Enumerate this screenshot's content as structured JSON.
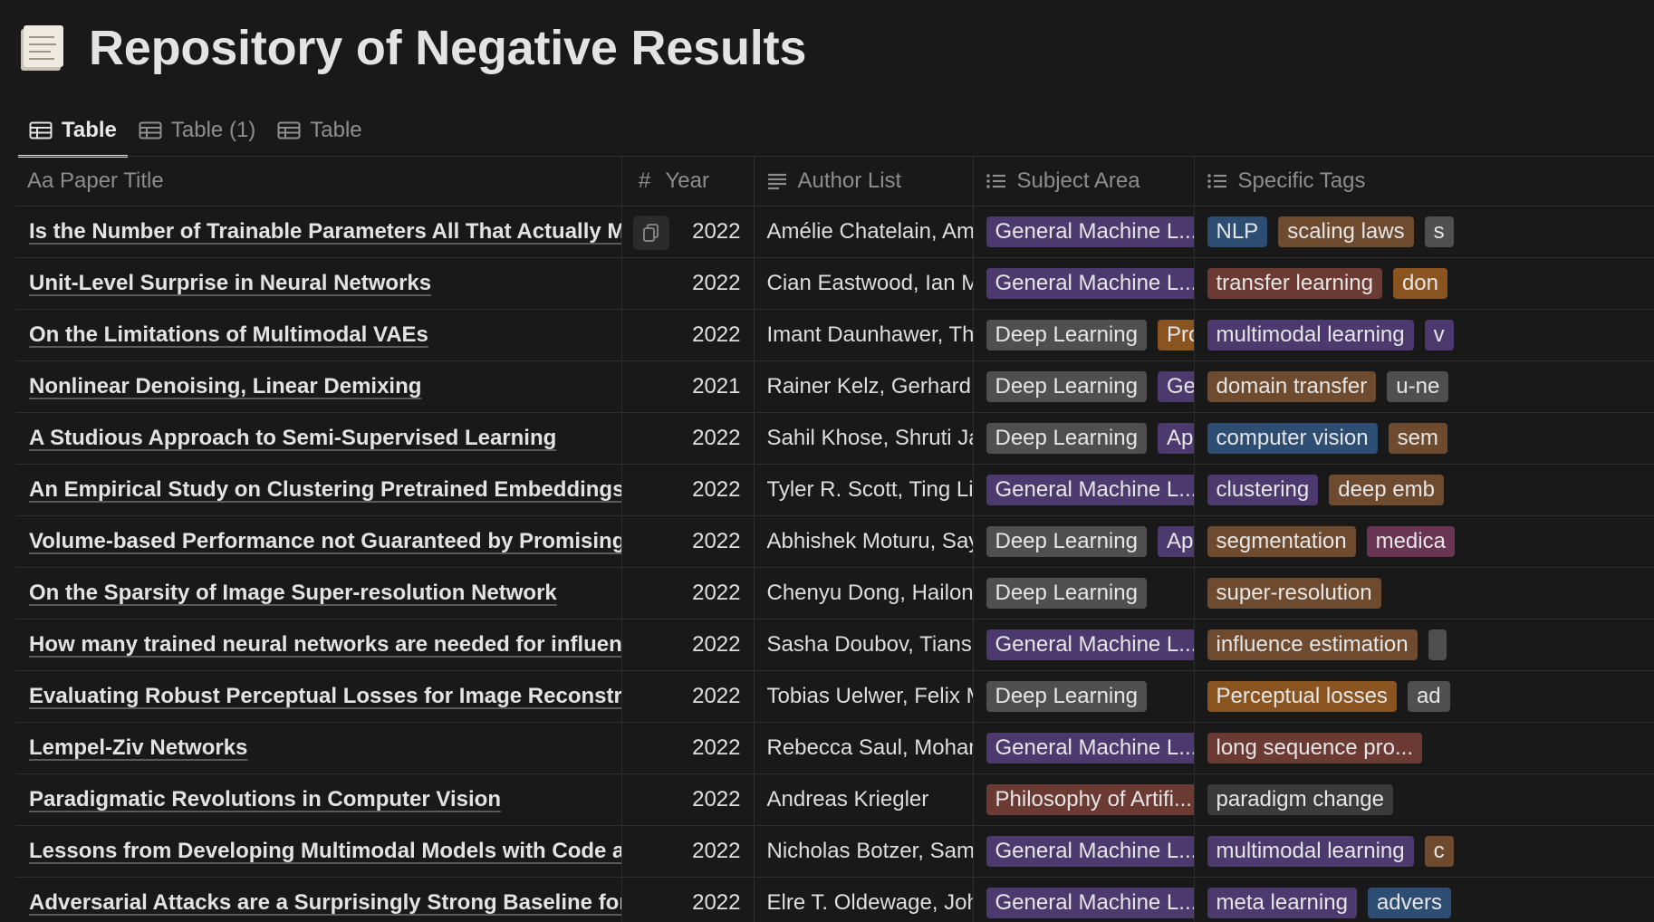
{
  "page": {
    "title": "Repository of Negative Results",
    "icon": "scroll-page-icon"
  },
  "tabs": [
    {
      "label": "Table",
      "active": true
    },
    {
      "label": "Table (1)",
      "active": false
    },
    {
      "label": "Table",
      "active": false
    }
  ],
  "columns": {
    "title": {
      "icon": "Aa",
      "label": "Paper Title"
    },
    "year": {
      "icon": "#",
      "label": "Year"
    },
    "authors": {
      "icon": "text-lines-icon",
      "label": "Author List"
    },
    "subject": {
      "icon": "list-icon",
      "label": "Subject Area"
    },
    "tags": {
      "icon": "list-icon",
      "label": "Specific Tags"
    }
  },
  "colors": {
    "purple": "#4c3a6e",
    "gray": "#4f4f4f",
    "brown": "#6e4b2f",
    "orange": "#8a5420",
    "blue": "#2d4d72",
    "red": "#6b3a33",
    "pink": "#6a3552",
    "darkgray": "#3a3a3a"
  },
  "rows": [
    {
      "title": "Is the Number of Trainable Parameters All That Actually Matters",
      "year": "2022",
      "authors": "Amélie Chatelain, Amine",
      "subjects": [
        {
          "text": "General Machine L...",
          "color": "purple"
        }
      ],
      "tags": [
        {
          "text": "NLP",
          "color": "blue"
        },
        {
          "text": "scaling laws",
          "color": "brown"
        },
        {
          "text": "s",
          "color": "gray"
        }
      ]
    },
    {
      "title": "Unit-Level Surprise in Neural Networks",
      "year": "2022",
      "authors": "Cian Eastwood, Ian Mas",
      "subjects": [
        {
          "text": "General Machine L...",
          "color": "purple"
        }
      ],
      "tags": [
        {
          "text": "transfer learning",
          "color": "red"
        },
        {
          "text": "don",
          "color": "orange"
        }
      ]
    },
    {
      "title": "On the Limitations of Multimodal VAEs",
      "year": "2022",
      "authors": "Imant Daunhawer, Thom",
      "subjects": [
        {
          "text": "Deep Learning",
          "color": "gray"
        },
        {
          "text": "Proba",
          "color": "orange"
        }
      ],
      "tags": [
        {
          "text": "multimodal learning",
          "color": "purple"
        },
        {
          "text": "v",
          "color": "purple"
        }
      ]
    },
    {
      "title": "Nonlinear Denoising, Linear Demixing",
      "year": "2021",
      "authors": "Rainer Kelz, Gerhard Wi",
      "subjects": [
        {
          "text": "Deep Learning",
          "color": "gray"
        },
        {
          "text": "Gener",
          "color": "purple"
        }
      ],
      "tags": [
        {
          "text": "domain transfer",
          "color": "brown"
        },
        {
          "text": "u-ne",
          "color": "gray"
        }
      ]
    },
    {
      "title": "A Studious Approach to Semi-Supervised Learning",
      "year": "2022",
      "authors": "Sahil Khose, Shruti Jain",
      "subjects": [
        {
          "text": "Deep Learning",
          "color": "gray"
        },
        {
          "text": "Applic",
          "color": "purple"
        }
      ],
      "tags": [
        {
          "text": "computer vision",
          "color": "blue"
        },
        {
          "text": "sem",
          "color": "brown"
        }
      ]
    },
    {
      "title": "An Empirical Study on Clustering Pretrained Embeddings: Is Deep S",
      "year": "2022",
      "authors": "Tyler R. Scott, Ting Liu,",
      "subjects": [
        {
          "text": "General Machine L...",
          "color": "purple"
        }
      ],
      "tags": [
        {
          "text": "clustering",
          "color": "purple"
        },
        {
          "text": "deep emb",
          "color": "brown"
        }
      ]
    },
    {
      "title": "Volume-based Performance not Guaranteed by Promising Patch-ba",
      "year": "2022",
      "authors": "Abhishek Moturu, Sayal",
      "subjects": [
        {
          "text": "Deep Learning",
          "color": "gray"
        },
        {
          "text": "Applic",
          "color": "purple"
        }
      ],
      "tags": [
        {
          "text": "segmentation",
          "color": "brown"
        },
        {
          "text": "medica",
          "color": "pink"
        }
      ]
    },
    {
      "title": "On the Sparsity of Image Super-resolution Network",
      "year": "2022",
      "authors": "Chenyu Dong, Hailong M",
      "subjects": [
        {
          "text": "Deep Learning",
          "color": "gray"
        }
      ],
      "tags": [
        {
          "text": "super-resolution",
          "color": "brown"
        }
      ]
    },
    {
      "title": "How many trained neural networks are needed for influence estima",
      "year": "2022",
      "authors": "Sasha Doubov, Tianshi C",
      "subjects": [
        {
          "text": "General Machine L...",
          "color": "purple"
        }
      ],
      "tags": [
        {
          "text": "influence estimation",
          "color": "brown"
        },
        {
          "text": " ",
          "color": "gray"
        }
      ]
    },
    {
      "title": "Evaluating Robust Perceptual Losses for Image Reconstruction",
      "year": "2022",
      "authors": "Tobias Uelwer, Felix Mic",
      "subjects": [
        {
          "text": "Deep Learning",
          "color": "gray"
        }
      ],
      "tags": [
        {
          "text": "Perceptual losses",
          "color": "orange"
        },
        {
          "text": "ad",
          "color": "gray"
        }
      ]
    },
    {
      "title": "Lempel-Ziv Networks",
      "year": "2022",
      "authors": "Rebecca Saul, Mohamm",
      "subjects": [
        {
          "text": "General Machine L...",
          "color": "purple"
        }
      ],
      "tags": [
        {
          "text": "long sequence pro...",
          "color": "red"
        }
      ]
    },
    {
      "title": "Paradigmatic Revolutions in Computer Vision",
      "year": "2022",
      "authors": "Andreas Kriegler",
      "subjects": [
        {
          "text": "Philosophy of Artifi...",
          "color": "red"
        }
      ],
      "tags": [
        {
          "text": "paradigm change",
          "color": "darkgray"
        }
      ]
    },
    {
      "title": "Lessons from Developing Multimodal Models with Code and Develo",
      "year": "2022",
      "authors": "Nicholas Botzer, Samee",
      "subjects": [
        {
          "text": "General Machine L...",
          "color": "purple"
        }
      ],
      "tags": [
        {
          "text": "multimodal learning",
          "color": "purple"
        },
        {
          "text": "c",
          "color": "brown"
        }
      ]
    },
    {
      "title": "Adversarial Attacks are a Surprisingly Strong Baseline for Poisoning",
      "year": "2022",
      "authors": "Elre T. Oldewage, John",
      "subjects": [
        {
          "text": "General Machine L...",
          "color": "purple"
        }
      ],
      "tags": [
        {
          "text": "meta learning",
          "color": "purple"
        },
        {
          "text": "advers",
          "color": "blue"
        }
      ]
    }
  ]
}
